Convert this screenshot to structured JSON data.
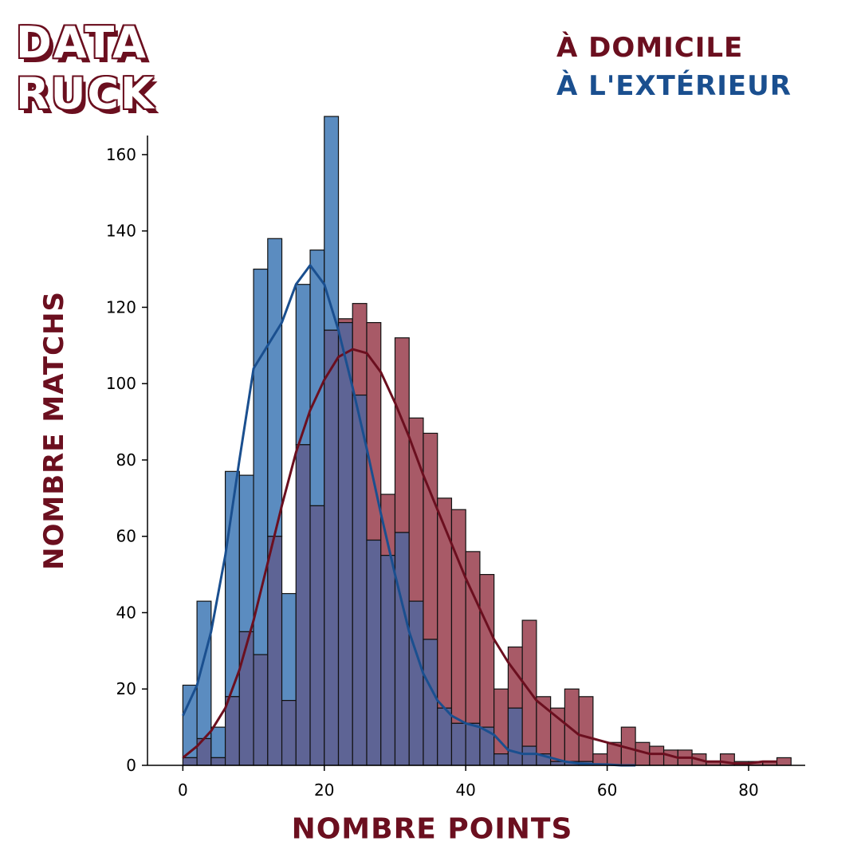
{
  "logo": {
    "line1": "DATA",
    "line2": "RUCK"
  },
  "legend": {
    "home": "À DOMICILE",
    "away": "À L'EXTÉRIEUR"
  },
  "colors": {
    "home_bar": "#a85a67",
    "home_line": "#6b0f1f",
    "away_bar": "#5b8cc0",
    "away_line": "#1a4f8f",
    "overlap": "#5e6495"
  },
  "chart_data": {
    "type": "bar",
    "subtype": "histogram with kde",
    "xlabel": "NOMBRE POINTS",
    "ylabel": "NOMBRE MATCHS",
    "xlim": [
      -5,
      88
    ],
    "ylim": [
      0,
      165
    ],
    "xticks": [
      0,
      20,
      40,
      60,
      80
    ],
    "yticks": [
      0,
      20,
      40,
      60,
      80,
      100,
      120,
      140,
      160
    ],
    "bin_start": 0,
    "bin_width": 2,
    "series": [
      {
        "name": "À DOMICILE",
        "values": [
          2,
          7,
          2,
          18,
          35,
          29,
          60,
          17,
          84,
          68,
          114,
          117,
          121,
          116,
          71,
          112,
          91,
          87,
          70,
          67,
          56,
          50,
          20,
          31,
          38,
          18,
          15,
          20,
          18,
          3,
          6,
          10,
          6,
          5,
          4,
          4,
          3,
          1,
          3,
          1,
          1,
          1,
          2
        ],
        "kde": [
          [
            0,
            2
          ],
          [
            2,
            5
          ],
          [
            4,
            9
          ],
          [
            6,
            15
          ],
          [
            8,
            25
          ],
          [
            10,
            38
          ],
          [
            12,
            53
          ],
          [
            14,
            68
          ],
          [
            16,
            82
          ],
          [
            18,
            93
          ],
          [
            20,
            101
          ],
          [
            22,
            107
          ],
          [
            24,
            109
          ],
          [
            26,
            108
          ],
          [
            28,
            103
          ],
          [
            30,
            95
          ],
          [
            32,
            86
          ],
          [
            34,
            76
          ],
          [
            36,
            67
          ],
          [
            38,
            58
          ],
          [
            40,
            49
          ],
          [
            42,
            41
          ],
          [
            44,
            33
          ],
          [
            46,
            27
          ],
          [
            48,
            22
          ],
          [
            50,
            17
          ],
          [
            52,
            14
          ],
          [
            54,
            11
          ],
          [
            56,
            8
          ],
          [
            58,
            7
          ],
          [
            60,
            6
          ],
          [
            62,
            5
          ],
          [
            64,
            4
          ],
          [
            66,
            3
          ],
          [
            68,
            3
          ],
          [
            70,
            2
          ],
          [
            72,
            2
          ],
          [
            74,
            1
          ],
          [
            76,
            1
          ],
          [
            78,
            0.5
          ],
          [
            80,
            0.5
          ],
          [
            82,
            1
          ],
          [
            84,
            1
          ]
        ]
      },
      {
        "name": "À L'EXTÉRIEUR",
        "values": [
          21,
          43,
          10,
          77,
          76,
          130,
          138,
          45,
          126,
          135,
          170,
          116,
          97,
          59,
          55,
          61,
          43,
          33,
          15,
          11,
          11,
          10,
          3,
          15,
          5,
          3,
          1,
          1,
          1,
          0,
          0,
          0,
          0,
          0,
          0,
          0,
          0,
          0,
          0,
          0,
          0,
          0,
          0
        ],
        "kde": [
          [
            0,
            13
          ],
          [
            2,
            21
          ],
          [
            4,
            35
          ],
          [
            6,
            55
          ],
          [
            8,
            80
          ],
          [
            10,
            104
          ],
          [
            12,
            110
          ],
          [
            14,
            116
          ],
          [
            16,
            126
          ],
          [
            18,
            131
          ],
          [
            20,
            126
          ],
          [
            22,
            114
          ],
          [
            24,
            99
          ],
          [
            26,
            83
          ],
          [
            28,
            66
          ],
          [
            30,
            50
          ],
          [
            32,
            35
          ],
          [
            34,
            24
          ],
          [
            36,
            17
          ],
          [
            38,
            13
          ],
          [
            40,
            11
          ],
          [
            42,
            10
          ],
          [
            44,
            8
          ],
          [
            46,
            4
          ],
          [
            48,
            3
          ],
          [
            50,
            3
          ],
          [
            52,
            2
          ],
          [
            54,
            1
          ],
          [
            56,
            0.5
          ],
          [
            58,
            0.3
          ],
          [
            60,
            0.2
          ],
          [
            62,
            0
          ],
          [
            64,
            0
          ]
        ]
      }
    ]
  }
}
